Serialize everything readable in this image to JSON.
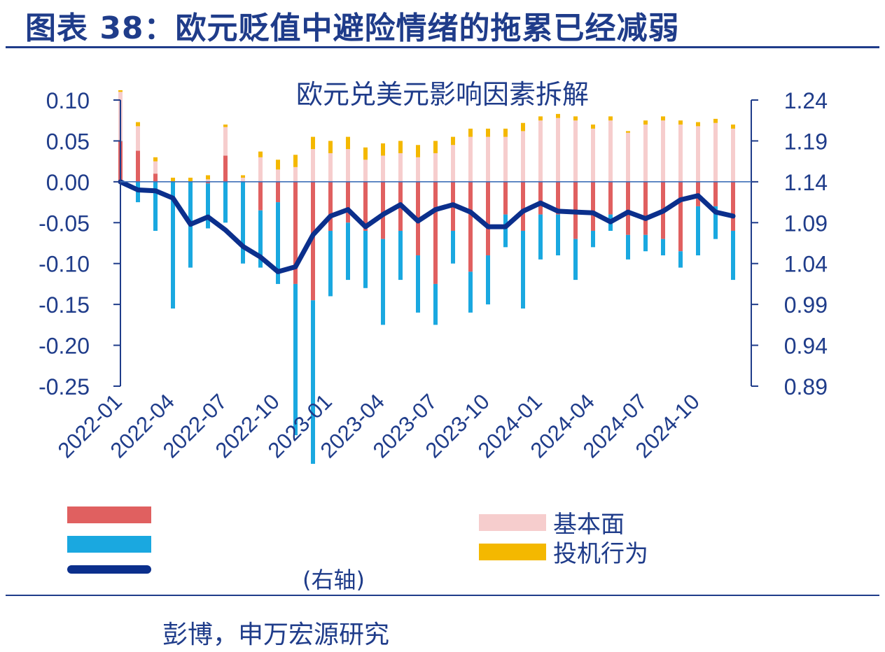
{
  "header": {
    "figure_title": "图表 38：欧元贬值中避险情绪的拖累已经减弱"
  },
  "legend": {
    "fundamental": {
      "label": "基本面",
      "color": "#f6cdcd"
    },
    "speculative": {
      "label": "投机行为",
      "color": "#f4b800"
    },
    "right_axis_note": "(右轴)"
  },
  "source": {
    "text": "彭博，申万宏源研究"
  },
  "colors": {
    "red_bar": "#e06060",
    "blue_bar": "#1aa8e0",
    "pink_bar": "#f6cdcd",
    "gold_bar": "#f4b800",
    "line": "#0b2f8c",
    "axis": "#1f3c8a"
  },
  "chart_data": {
    "type": "bar",
    "title": "欧元兑美元影响因素拆解",
    "x": [
      "2022-01",
      "2022-02",
      "2022-03",
      "2022-04",
      "2022-05",
      "2022-06",
      "2022-07",
      "2022-08",
      "2022-09",
      "2022-10",
      "2022-11",
      "2022-12",
      "2023-01",
      "2023-02",
      "2023-03",
      "2023-04",
      "2023-05",
      "2023-06",
      "2023-07",
      "2023-08",
      "2023-09",
      "2023-10",
      "2023-11",
      "2023-12",
      "2024-01",
      "2024-02",
      "2024-03",
      "2024-04",
      "2024-05",
      "2024-06",
      "2024-07",
      "2024-08",
      "2024-09",
      "2024-10",
      "2024-11",
      "2024-12"
    ],
    "x_tick_labels": [
      "2022-01",
      "2022-04",
      "2022-07",
      "2022-10",
      "2023-01",
      "2023-04",
      "2023-07",
      "2023-10",
      "2024-01",
      "2024-04",
      "2024-07",
      "2024-10"
    ],
    "left_axis": {
      "ylim": [
        -0.25,
        0.1
      ],
      "tick_labels": [
        "0.10",
        "0.05",
        "0.00",
        "-0.05",
        "-0.10",
        "-0.15",
        "-0.20",
        "-0.25"
      ]
    },
    "right_axis": {
      "ylim": [
        0.89,
        1.24
      ],
      "tick_labels": [
        "1.24",
        "1.19",
        "1.14",
        "1.09",
        "1.04",
        "0.99",
        "0.94",
        "0.89"
      ]
    },
    "series": [
      {
        "values": [
          0.05,
          0.038,
          0.01,
          0.0,
          0.0,
          -0.002,
          0.032,
          0.0,
          -0.035,
          -0.025,
          -0.125,
          -0.145,
          -0.06,
          -0.05,
          -0.06,
          -0.07,
          -0.06,
          -0.09,
          -0.125,
          -0.06,
          -0.11,
          -0.09,
          -0.04,
          -0.06,
          -0.04,
          -0.04,
          -0.07,
          -0.06,
          -0.04,
          -0.065,
          -0.065,
          -0.07,
          -0.085,
          -0.03,
          -0.03,
          -0.06
        ]
      },
      {
        "values": [
          0.0,
          -0.025,
          -0.06,
          -0.155,
          -0.105,
          -0.055,
          -0.05,
          -0.1,
          -0.07,
          -0.1,
          -0.185,
          -0.2,
          -0.08,
          -0.07,
          -0.07,
          -0.105,
          -0.06,
          -0.07,
          -0.05,
          -0.04,
          -0.05,
          -0.06,
          -0.04,
          -0.095,
          -0.055,
          -0.05,
          -0.05,
          -0.02,
          -0.02,
          -0.03,
          -0.02,
          -0.02,
          -0.02,
          -0.06,
          -0.04,
          -0.06
        ]
      },
      {
        "name": "基本面",
        "values": [
          0.06,
          0.03,
          0.015,
          0.0,
          0.0,
          0.003,
          0.035,
          0.005,
          0.03,
          0.015,
          0.018,
          0.04,
          0.035,
          0.04,
          0.027,
          0.032,
          0.035,
          0.03,
          0.035,
          0.045,
          0.055,
          0.055,
          0.055,
          0.062,
          0.075,
          0.078,
          0.075,
          0.065,
          0.075,
          0.06,
          0.07,
          0.075,
          0.07,
          0.068,
          0.072,
          0.065
        ]
      },
      {
        "name": "投机行为",
        "values": [
          0.002,
          0.005,
          0.005,
          0.005,
          0.005,
          0.005,
          0.003,
          0.003,
          0.007,
          0.012,
          0.015,
          0.015,
          0.015,
          0.015,
          0.015,
          0.015,
          0.015,
          0.015,
          0.015,
          0.01,
          0.01,
          0.01,
          0.01,
          0.01,
          0.005,
          0.005,
          0.005,
          0.005,
          0.005,
          0.002,
          0.005,
          0.005,
          0.005,
          0.005,
          0.005,
          0.005
        ]
      },
      {
        "values": [
          1.14,
          1.13,
          1.129,
          1.12,
          1.088,
          1.097,
          1.081,
          1.061,
          1.048,
          1.03,
          1.036,
          1.075,
          1.098,
          1.106,
          1.085,
          1.1,
          1.112,
          1.092,
          1.106,
          1.112,
          1.103,
          1.085,
          1.085,
          1.104,
          1.114,
          1.104,
          1.103,
          1.102,
          1.091,
          1.103,
          1.095,
          1.104,
          1.118,
          1.123,
          1.103,
          1.098
        ]
      }
    ]
  }
}
